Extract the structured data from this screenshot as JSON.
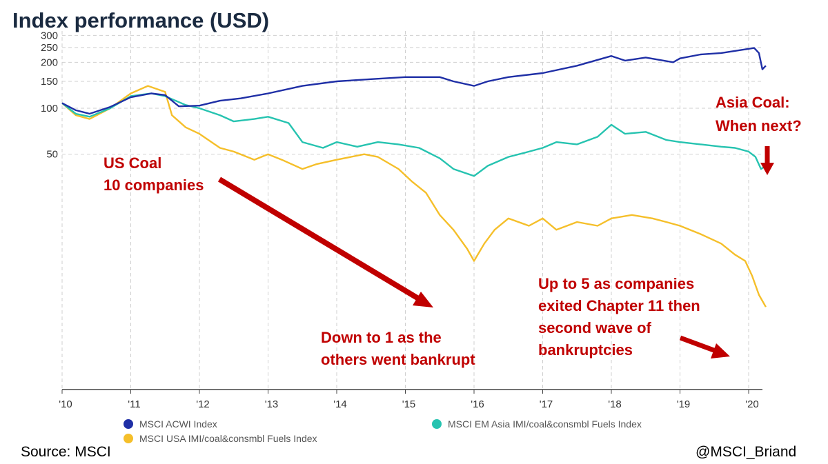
{
  "chart_data": {
    "type": "line",
    "title": "Index performance (USD)",
    "y_scale": "log",
    "y_ticks": [
      50,
      100,
      150,
      200,
      250,
      300
    ],
    "x_ticks": [
      "'10",
      "'11",
      "'12",
      "'13",
      "'14",
      "'15",
      "'16",
      "'17",
      "'18",
      "'19",
      "'20"
    ],
    "grid": true,
    "legend_position": "bottom",
    "series": [
      {
        "name": "MSCI ACWI Index",
        "color": "#1f2fa6",
        "x": [
          2010.0,
          2010.2,
          2010.4,
          2010.7,
          2011.0,
          2011.3,
          2011.5,
          2011.7,
          2012.0,
          2012.3,
          2012.6,
          2013.0,
          2013.5,
          2014.0,
          2014.5,
          2015.0,
          2015.5,
          2015.7,
          2016.0,
          2016.2,
          2016.5,
          2017.0,
          2017.5,
          2018.0,
          2018.2,
          2018.5,
          2018.9,
          2019.0,
          2019.3,
          2019.6,
          2020.0,
          2020.08,
          2020.15,
          2020.2,
          2020.25
        ],
        "values": [
          108,
          97,
          92,
          102,
          118,
          125,
          122,
          103,
          104,
          112,
          116,
          125,
          140,
          150,
          155,
          160,
          160,
          150,
          140,
          150,
          160,
          170,
          190,
          220,
          205,
          215,
          200,
          212,
          225,
          230,
          245,
          248,
          230,
          180,
          190
        ]
      },
      {
        "name": "MSCI USA IMI/coal&consmbl Fuels Index",
        "color": "#f5bf2a",
        "x": [
          2010.0,
          2010.2,
          2010.4,
          2010.7,
          2011.0,
          2011.25,
          2011.5,
          2011.6,
          2011.8,
          2012.0,
          2012.3,
          2012.5,
          2012.8,
          2013.0,
          2013.2,
          2013.5,
          2013.7,
          2014.0,
          2014.4,
          2014.6,
          2014.9,
          2015.1,
          2015.3,
          2015.5,
          2015.7,
          2015.9,
          2016.0,
          2016.15,
          2016.3,
          2016.5,
          2016.8,
          2017.0,
          2017.2,
          2017.5,
          2017.8,
          2018.0,
          2018.3,
          2018.6,
          2018.8,
          2019.0,
          2019.3,
          2019.6,
          2019.8,
          2019.95,
          2020.05,
          2020.15,
          2020.25
        ],
        "values": [
          108,
          90,
          85,
          100,
          125,
          140,
          128,
          90,
          75,
          68,
          55,
          52,
          46,
          50,
          46,
          40,
          43,
          46,
          50,
          48,
          40,
          33,
          28,
          20,
          16,
          12,
          10,
          13,
          16,
          19,
          17,
          19,
          16,
          18,
          17,
          19,
          20,
          19,
          18,
          17,
          15,
          13,
          11,
          10,
          8,
          6,
          5
        ]
      },
      {
        "name": "MSCI EM Asia IMI/coal&consmbl Fuels Index",
        "color": "#26c3b0",
        "x": [
          2010.0,
          2010.2,
          2010.4,
          2010.7,
          2011.0,
          2011.3,
          2011.5,
          2011.8,
          2012.0,
          2012.3,
          2012.5,
          2012.8,
          2013.0,
          2013.3,
          2013.5,
          2013.8,
          2014.0,
          2014.3,
          2014.6,
          2014.9,
          2015.2,
          2015.5,
          2015.7,
          2016.0,
          2016.2,
          2016.5,
          2016.8,
          2017.0,
          2017.2,
          2017.5,
          2017.8,
          2018.0,
          2018.2,
          2018.5,
          2018.8,
          2019.0,
          2019.3,
          2019.6,
          2019.8,
          2020.0,
          2020.1,
          2020.18,
          2020.25
        ],
        "values": [
          108,
          92,
          88,
          100,
          120,
          125,
          120,
          105,
          100,
          90,
          82,
          85,
          88,
          80,
          60,
          55,
          60,
          56,
          60,
          58,
          55,
          47,
          40,
          36,
          42,
          48,
          52,
          55,
          60,
          58,
          65,
          78,
          68,
          70,
          62,
          60,
          58,
          56,
          55,
          52,
          48,
          40,
          42
        ]
      }
    ],
    "annotations": [
      {
        "id": "us_coal",
        "lines": [
          "US Coal",
          "10 companies"
        ]
      },
      {
        "id": "asia_coal",
        "lines": [
          "Asia Coal:",
          "When next?"
        ]
      },
      {
        "id": "down_to_1",
        "lines": [
          "Down to 1 as the",
          "others went bankrupt"
        ]
      },
      {
        "id": "up_to_5",
        "lines": [
          "Up to 5 as companies",
          "exited Chapter 11 then",
          "second wave of",
          "bankruptcies"
        ]
      }
    ]
  },
  "footer": {
    "source": "Source: MSCI",
    "handle": "@MSCI_Briand"
  },
  "colors": {
    "annotation": "#c00000",
    "title": "#1a2a40",
    "grid": "#cfcfcf"
  }
}
